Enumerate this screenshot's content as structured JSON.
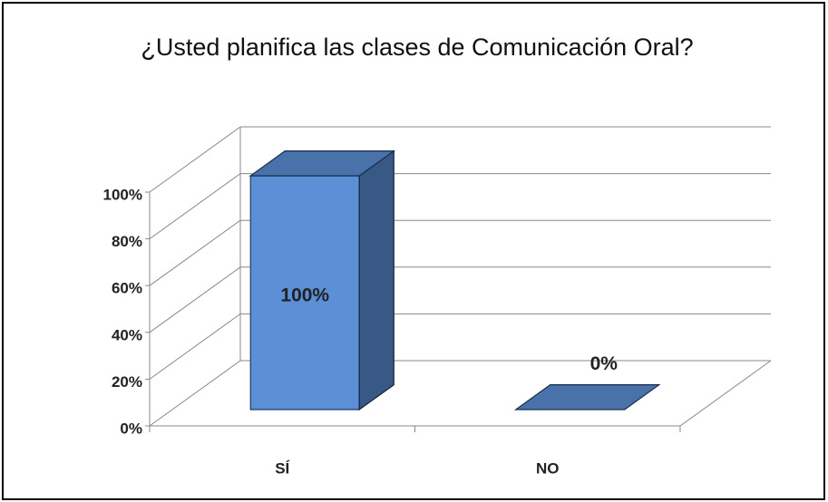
{
  "chart_data": {
    "type": "bar3d",
    "title": "¿Usted planifica las clases de Comunicación Oral?",
    "categories": [
      "SÍ",
      "NO"
    ],
    "values": [
      100,
      0
    ],
    "value_labels": [
      "100%",
      "0%"
    ],
    "color": "#5b8fd6",
    "ylim": [
      0,
      100
    ],
    "yticks": [
      {
        "value": 0,
        "label": "0%"
      },
      {
        "value": 20,
        "label": "20%"
      },
      {
        "value": 40,
        "label": "40%"
      },
      {
        "value": 60,
        "label": "60%"
      },
      {
        "value": 80,
        "label": "80%"
      },
      {
        "value": 100,
        "label": "100%"
      }
    ],
    "grid": true
  }
}
